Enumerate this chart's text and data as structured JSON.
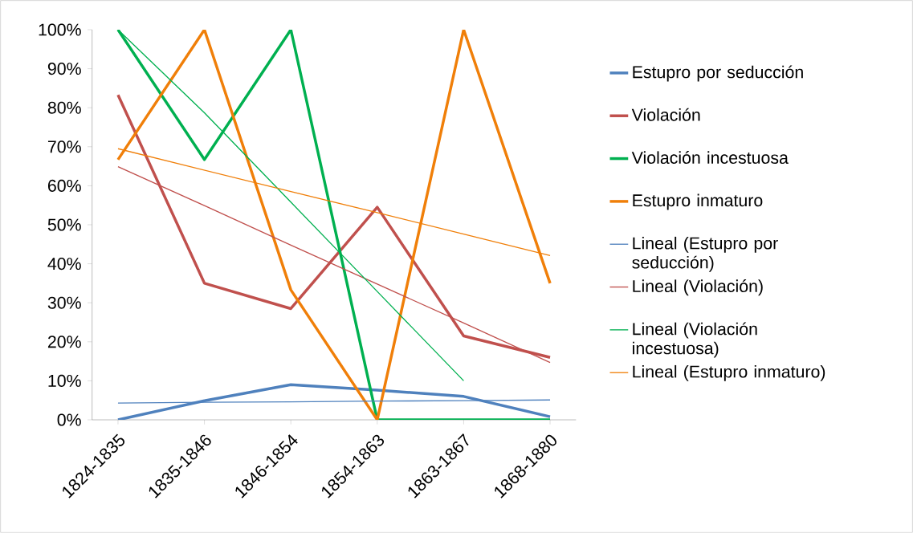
{
  "chart_data": {
    "type": "line",
    "categories": [
      "1824-1835",
      "1835-1846",
      "1846-1854",
      "1854-1863",
      "1863-1867",
      "1868-1880"
    ],
    "ylim": [
      0,
      100
    ],
    "yticks": [
      {
        "value": 0,
        "label": "0%"
      },
      {
        "value": 10,
        "label": "10%"
      },
      {
        "value": 20,
        "label": "20%"
      },
      {
        "value": 30,
        "label": "30%"
      },
      {
        "value": 40,
        "label": "40%"
      },
      {
        "value": 50,
        "label": "50%"
      },
      {
        "value": 60,
        "label": "60%"
      },
      {
        "value": 70,
        "label": "70%"
      },
      {
        "value": 80,
        "label": "80%"
      },
      {
        "value": 90,
        "label": "90%"
      },
      {
        "value": 100,
        "label": "100%"
      }
    ],
    "grid": false,
    "legend": "right",
    "marker": "none",
    "line_style": "solid",
    "series": [
      {
        "name": "Estupro por seducción",
        "color": "#4f81bd",
        "values": [
          0,
          4.9,
          9,
          7.6,
          6,
          0.8
        ]
      },
      {
        "name": "Violación",
        "color": "#c0504d",
        "values": [
          83.3,
          35,
          28.5,
          54.5,
          21.5,
          16
        ]
      },
      {
        "name": "Violación incestuosa",
        "color": "#00b050",
        "values": [
          100,
          66.7,
          100,
          0,
          0,
          0
        ]
      },
      {
        "name": "Estupro inmaturo",
        "color": "#f07f09",
        "values": [
          66.7,
          100,
          33.3,
          0,
          100,
          35
        ]
      },
      {
        "name": "Lineal (Estupro por seducción)",
        "color": "#4f81bd",
        "type": "line",
        "values": [
          4.3,
          4.5,
          4.6,
          4.8,
          4.9,
          5.1
        ]
      },
      {
        "name": "Lineal (Violación)",
        "color": "#c0504d",
        "type": "line",
        "values": [
          64.9,
          54.9,
          44.8,
          34.8,
          24.8,
          14.7
        ]
      },
      {
        "name": "Lineal (Violación incestuosa)",
        "color": "#00b050",
        "type": "line",
        "values": [
          100,
          78.7,
          55.8,
          32.9,
          10,
          null
        ]
      },
      {
        "name": "Lineal (Estupro inmaturo)",
        "color": "#f07f09",
        "type": "line",
        "values": [
          69.5,
          64,
          58.5,
          53.1,
          47.6,
          42.1
        ]
      }
    ]
  }
}
